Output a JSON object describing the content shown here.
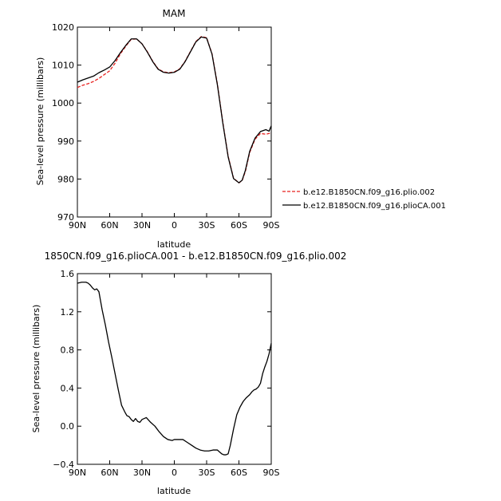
{
  "chart_data": [
    {
      "type": "line",
      "title": "MAM",
      "xlabel": "latitude",
      "ylabel": "Sea-level pressure (millibars)",
      "xlim": [
        90,
        -90
      ],
      "ylim": [
        970,
        1020
      ],
      "x_ticks": [
        {
          "value": 90,
          "label": "90N"
        },
        {
          "value": 60,
          "label": "60N"
        },
        {
          "value": 30,
          "label": "30N"
        },
        {
          "value": 0,
          "label": "0"
        },
        {
          "value": -30,
          "label": "30S"
        },
        {
          "value": -60,
          "label": "60S"
        },
        {
          "value": -90,
          "label": "90S"
        }
      ],
      "y_ticks": [
        {
          "value": 970,
          "label": "970"
        },
        {
          "value": 980,
          "label": "980"
        },
        {
          "value": 990,
          "label": "990"
        },
        {
          "value": 1000,
          "label": "1000"
        },
        {
          "value": 1010,
          "label": "1010"
        },
        {
          "value": 1020,
          "label": "1020"
        }
      ],
      "legend_position": "outside-right",
      "series": [
        {
          "name": "b.e12.B1850CN.f09_g16.plio.002",
          "color": "#e8201e",
          "dash": true,
          "x": [
            90,
            85,
            80,
            75,
            70,
            65,
            60,
            55,
            50,
            45,
            40,
            35,
            30,
            25,
            20,
            15,
            10,
            5,
            0,
            -5,
            -10,
            -15,
            -20,
            -25,
            -30,
            -35,
            -40,
            -45,
            -50,
            -55,
            -60,
            -63,
            -66,
            -70,
            -75,
            -80,
            -85,
            -88,
            -90
          ],
          "y": [
            1004.1,
            1004.7,
            1005.1,
            1005.7,
            1006.5,
            1007.5,
            1008.5,
            1010.5,
            1013,
            1015,
            1016.8,
            1016.9,
            1015.6,
            1013.5,
            1011,
            1009,
            1008.2,
            1008,
            1008.2,
            1009,
            1011,
            1013.6,
            1016.2,
            1017.5,
            1017.2,
            1013,
            1005,
            995,
            986,
            980.2,
            979,
            979.6,
            982,
            987,
            990.5,
            992,
            991.8,
            992,
            992
          ]
        },
        {
          "name": "b.e12.B1850CN.f09_g16.plioCA.001",
          "color": "#000000",
          "dash": false,
          "x": [
            90,
            85,
            80,
            75,
            70,
            65,
            60,
            55,
            50,
            45,
            40,
            35,
            30,
            25,
            20,
            15,
            10,
            5,
            0,
            -5,
            -10,
            -15,
            -20,
            -25,
            -30,
            -35,
            -40,
            -45,
            -50,
            -55,
            -60,
            -63,
            -66,
            -70,
            -75,
            -80,
            -85,
            -88,
            -90
          ],
          "y": [
            1005.5,
            1006.1,
            1006.6,
            1007.1,
            1008,
            1008.7,
            1009.5,
            1011.2,
            1013.3,
            1015.2,
            1016.9,
            1016.9,
            1015.6,
            1013.4,
            1010.9,
            1008.9,
            1008.1,
            1007.9,
            1008.1,
            1008.9,
            1010.9,
            1013.5,
            1016.1,
            1017.4,
            1017.1,
            1012.9,
            1004.8,
            994.8,
            985.8,
            980.1,
            979,
            979.7,
            982.3,
            987.3,
            990.8,
            992.5,
            993,
            992.6,
            994
          ]
        }
      ]
    },
    {
      "type": "line",
      "title": "1850CN.f09_g16.plioCA.001 - b.e12.B1850CN.f09_g16.plio.002",
      "xlabel": "latitude",
      "ylabel": "Sea-level pressure (millibars)",
      "xlim": [
        90,
        -90
      ],
      "ylim": [
        -0.4,
        1.6
      ],
      "x_ticks": [
        {
          "value": 90,
          "label": "90N"
        },
        {
          "value": 60,
          "label": "60N"
        },
        {
          "value": 30,
          "label": "30N"
        },
        {
          "value": 0,
          "label": "0"
        },
        {
          "value": -30,
          "label": "30S"
        },
        {
          "value": -60,
          "label": "60S"
        },
        {
          "value": -90,
          "label": "90S"
        }
      ],
      "y_ticks": [
        {
          "value": -0.4,
          "label": "−0.4"
        },
        {
          "value": 0.0,
          "label": "0.0"
        },
        {
          "value": 0.4,
          "label": "0.4"
        },
        {
          "value": 0.8,
          "label": "0.8"
        },
        {
          "value": 1.2,
          "label": "1.2"
        },
        {
          "value": 1.6,
          "label": "1.6"
        }
      ],
      "series": [
        {
          "color": "#000000",
          "dash": false,
          "x": [
            90,
            86,
            82,
            80,
            78,
            76,
            74,
            72,
            70,
            67,
            64,
            61,
            58,
            55,
            52,
            49,
            46,
            44,
            42,
            40,
            38,
            36,
            34,
            32,
            30,
            26,
            22,
            18,
            14,
            10,
            6,
            2,
            0,
            -4,
            -8,
            -12,
            -16,
            -20,
            -24,
            -28,
            -32,
            -36,
            -40,
            -42,
            -44,
            -46,
            -48,
            -50,
            -52,
            -55,
            -58,
            -61,
            -64,
            -67,
            -70,
            -72,
            -74,
            -76,
            -78,
            -80,
            -82,
            -84,
            -86,
            -88,
            -90
          ],
          "y": [
            1.5,
            1.51,
            1.51,
            1.5,
            1.48,
            1.45,
            1.43,
            1.44,
            1.41,
            1.22,
            1.06,
            0.88,
            0.72,
            0.55,
            0.38,
            0.22,
            0.15,
            0.11,
            0.1,
            0.07,
            0.05,
            0.08,
            0.05,
            0.04,
            0.07,
            0.09,
            0.04,
            0.0,
            -0.06,
            -0.11,
            -0.14,
            -0.15,
            -0.14,
            -0.14,
            -0.14,
            -0.17,
            -0.2,
            -0.23,
            -0.25,
            -0.26,
            -0.26,
            -0.25,
            -0.25,
            -0.27,
            -0.29,
            -0.3,
            -0.3,
            -0.29,
            -0.2,
            -0.03,
            0.12,
            0.2,
            0.26,
            0.3,
            0.33,
            0.36,
            0.38,
            0.39,
            0.41,
            0.45,
            0.55,
            0.62,
            0.68,
            0.76,
            0.87
          ]
        }
      ]
    }
  ]
}
